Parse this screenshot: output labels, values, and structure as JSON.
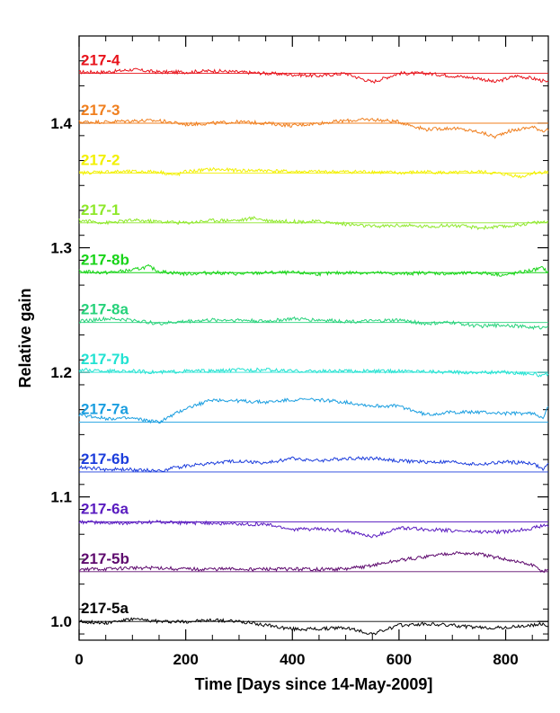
{
  "chart_data": {
    "type": "line",
    "title": "",
    "xlabel": "Time [Days since 14-May-2009]",
    "ylabel": "Relative gain",
    "xlim": [
      0,
      880
    ],
    "ylim": [
      0.985,
      1.47
    ],
    "xticks": [
      0,
      200,
      400,
      600,
      800
    ],
    "yticks": [
      1.0,
      1.1,
      1.2,
      1.3,
      1.4
    ],
    "grid": false,
    "legend": "none",
    "series": [
      {
        "name": "217-4",
        "color": "#e8141c",
        "baseline": 1.44,
        "x": [
          0,
          50,
          100,
          150,
          200,
          250,
          300,
          350,
          400,
          450,
          500,
          520,
          550,
          600,
          650,
          700,
          750,
          780,
          820,
          850,
          870,
          880
        ],
        "y": [
          1.441,
          1.441,
          1.443,
          1.441,
          1.441,
          1.442,
          1.441,
          1.44,
          1.439,
          1.438,
          1.44,
          1.437,
          1.433,
          1.44,
          1.44,
          1.438,
          1.436,
          1.433,
          1.438,
          1.436,
          1.434,
          1.432
        ]
      },
      {
        "name": "217-3",
        "color": "#f07f1e",
        "baseline": 1.4,
        "x": [
          0,
          50,
          100,
          150,
          200,
          250,
          300,
          350,
          400,
          450,
          500,
          550,
          600,
          650,
          700,
          750,
          780,
          800,
          850,
          870,
          880
        ],
        "y": [
          1.401,
          1.401,
          1.402,
          1.402,
          1.399,
          1.4,
          1.401,
          1.4,
          1.398,
          1.4,
          1.402,
          1.403,
          1.401,
          1.395,
          1.396,
          1.393,
          1.389,
          1.393,
          1.397,
          1.394,
          1.395
        ]
      },
      {
        "name": "217-2",
        "color": "#f2f000",
        "baseline": 1.36,
        "x": [
          0,
          50,
          100,
          150,
          180,
          200,
          250,
          300,
          350,
          400,
          450,
          500,
          550,
          600,
          650,
          700,
          750,
          800,
          830,
          850,
          880
        ],
        "y": [
          1.36,
          1.361,
          1.361,
          1.361,
          1.358,
          1.361,
          1.363,
          1.362,
          1.362,
          1.361,
          1.361,
          1.361,
          1.361,
          1.36,
          1.361,
          1.36,
          1.361,
          1.359,
          1.357,
          1.36,
          1.361
        ]
      },
      {
        "name": "217-1",
        "color": "#8ee82a",
        "baseline": 1.32,
        "x": [
          0,
          50,
          100,
          150,
          200,
          250,
          300,
          330,
          350,
          400,
          450,
          500,
          550,
          600,
          650,
          700,
          750,
          800,
          850,
          880
        ],
        "y": [
          1.322,
          1.32,
          1.322,
          1.321,
          1.32,
          1.322,
          1.322,
          1.324,
          1.322,
          1.321,
          1.321,
          1.319,
          1.317,
          1.318,
          1.317,
          1.318,
          1.316,
          1.317,
          1.32,
          1.321
        ]
      },
      {
        "name": "217-8b",
        "color": "#19d419",
        "baseline": 1.28,
        "x": [
          0,
          50,
          100,
          130,
          150,
          200,
          250,
          300,
          350,
          400,
          450,
          500,
          550,
          600,
          650,
          700,
          750,
          800,
          850,
          870,
          880
        ],
        "y": [
          1.281,
          1.28,
          1.282,
          1.285,
          1.281,
          1.279,
          1.28,
          1.279,
          1.28,
          1.28,
          1.279,
          1.28,
          1.28,
          1.279,
          1.28,
          1.279,
          1.28,
          1.278,
          1.282,
          1.284,
          1.28
        ]
      },
      {
        "name": "217-8a",
        "color": "#26d27a",
        "baseline": 1.24,
        "x": [
          0,
          50,
          100,
          150,
          200,
          250,
          300,
          350,
          400,
          450,
          500,
          550,
          600,
          650,
          700,
          750,
          800,
          850,
          870,
          880
        ],
        "y": [
          1.241,
          1.243,
          1.242,
          1.239,
          1.241,
          1.242,
          1.242,
          1.241,
          1.243,
          1.242,
          1.241,
          1.241,
          1.242,
          1.239,
          1.24,
          1.237,
          1.238,
          1.236,
          1.236,
          1.238
        ]
      },
      {
        "name": "217-7b",
        "color": "#22e2d2",
        "baseline": 1.2,
        "x": [
          0,
          50,
          100,
          150,
          200,
          250,
          300,
          350,
          400,
          450,
          500,
          550,
          600,
          650,
          700,
          750,
          800,
          850,
          870,
          880
        ],
        "y": [
          1.202,
          1.201,
          1.201,
          1.2,
          1.201,
          1.201,
          1.202,
          1.202,
          1.201,
          1.201,
          1.201,
          1.201,
          1.201,
          1.201,
          1.2,
          1.2,
          1.2,
          1.199,
          1.197,
          1.199
        ]
      },
      {
        "name": "217-7a",
        "color": "#1a9ee0",
        "baseline": 1.16,
        "x": [
          0,
          50,
          100,
          150,
          200,
          250,
          300,
          350,
          400,
          450,
          500,
          550,
          600,
          650,
          700,
          750,
          800,
          850,
          870,
          880
        ],
        "y": [
          1.166,
          1.163,
          1.163,
          1.16,
          1.171,
          1.178,
          1.177,
          1.176,
          1.178,
          1.178,
          1.176,
          1.173,
          1.173,
          1.166,
          1.168,
          1.168,
          1.167,
          1.167,
          1.164,
          1.172
        ]
      },
      {
        "name": "217-6b",
        "color": "#1c3ddc",
        "baseline": 1.12,
        "x": [
          0,
          50,
          100,
          150,
          200,
          250,
          300,
          350,
          400,
          450,
          500,
          550,
          600,
          650,
          700,
          750,
          800,
          850,
          870,
          880
        ],
        "y": [
          1.124,
          1.122,
          1.122,
          1.121,
          1.125,
          1.127,
          1.129,
          1.127,
          1.131,
          1.129,
          1.131,
          1.131,
          1.129,
          1.128,
          1.128,
          1.126,
          1.128,
          1.127,
          1.122,
          1.126
        ]
      },
      {
        "name": "217-6a",
        "color": "#5a1cc0",
        "baseline": 1.08,
        "x": [
          0,
          50,
          100,
          150,
          200,
          250,
          300,
          350,
          400,
          450,
          500,
          550,
          600,
          650,
          700,
          750,
          800,
          850,
          870,
          880
        ],
        "y": [
          1.08,
          1.079,
          1.079,
          1.08,
          1.079,
          1.079,
          1.078,
          1.078,
          1.074,
          1.074,
          1.073,
          1.068,
          1.075,
          1.074,
          1.073,
          1.072,
          1.072,
          1.075,
          1.077,
          1.077
        ]
      },
      {
        "name": "217-5b",
        "color": "#5e0a6e",
        "baseline": 1.04,
        "x": [
          0,
          50,
          100,
          150,
          200,
          250,
          300,
          350,
          400,
          450,
          500,
          550,
          600,
          650,
          700,
          750,
          800,
          850,
          870,
          880
        ],
        "y": [
          1.042,
          1.042,
          1.043,
          1.043,
          1.042,
          1.042,
          1.042,
          1.042,
          1.042,
          1.042,
          1.042,
          1.045,
          1.049,
          1.052,
          1.055,
          1.054,
          1.05,
          1.045,
          1.04,
          1.042
        ]
      },
      {
        "name": "217-5a",
        "color": "#000000",
        "baseline": 1.0,
        "x": [
          0,
          50,
          100,
          150,
          200,
          250,
          300,
          350,
          400,
          450,
          500,
          550,
          600,
          650,
          700,
          750,
          800,
          850,
          870,
          880
        ],
        "y": [
          1.0,
          0.999,
          1.002,
          1.0,
          1.0,
          1.001,
          1.0,
          0.997,
          0.994,
          0.994,
          0.995,
          0.99,
          0.997,
          0.998,
          0.997,
          0.995,
          0.995,
          0.997,
          0.998,
          0.996
        ]
      }
    ]
  }
}
